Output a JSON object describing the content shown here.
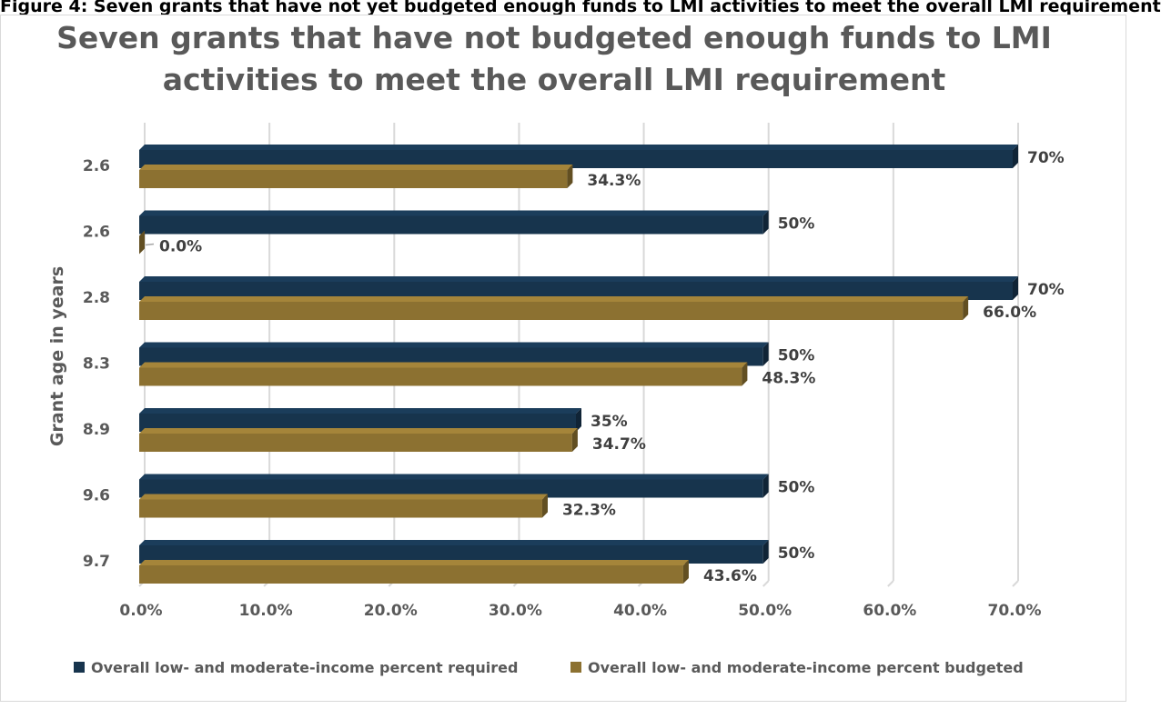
{
  "caption": "Figure 4: Seven grants that have not yet budgeted enough funds to LMI activities to meet the overall LMI requirement",
  "colors": {
    "required": "#17344d",
    "budgeted": "#8c7131",
    "grid": "#d9d9d9",
    "text": "#595959"
  },
  "chart_data": {
    "type": "bar",
    "orientation": "horizontal",
    "title": "Seven grants that have not budgeted enough funds to LMI activities to meet the overall LMI requirement",
    "title_lines": [
      "Seven grants that have not budgeted enough funds to LMI",
      "activities to meet the overall LMI requirement"
    ],
    "ylabel": "Grant age in years",
    "xlabel": "",
    "categories": [
      "2.6",
      "2.6",
      "2.8",
      "8.3",
      "8.9",
      "9.6",
      "9.7"
    ],
    "xlim": [
      0,
      70
    ],
    "xticks": [
      "0.0%",
      "10.0%",
      "20.0%",
      "30.0%",
      "40.0%",
      "50.0%",
      "60.0%",
      "70.0%"
    ],
    "grid": true,
    "legend_position": "bottom",
    "series": [
      {
        "name": "Overall low- and moderate-income percent required",
        "values": [
          70,
          50,
          70,
          50,
          35,
          50,
          50
        ],
        "labels": [
          "70%",
          "50%",
          "70%",
          "50%",
          "35%",
          "50%",
          "50%"
        ]
      },
      {
        "name": "Overall low- and moderate-income percent budgeted",
        "values": [
          34.3,
          0.0,
          66.0,
          48.3,
          34.7,
          32.3,
          43.6
        ],
        "labels": [
          "34.3%",
          "0.0%",
          "66.0%",
          "48.3%",
          "34.7%",
          "32.3%",
          "43.6%"
        ]
      }
    ]
  }
}
